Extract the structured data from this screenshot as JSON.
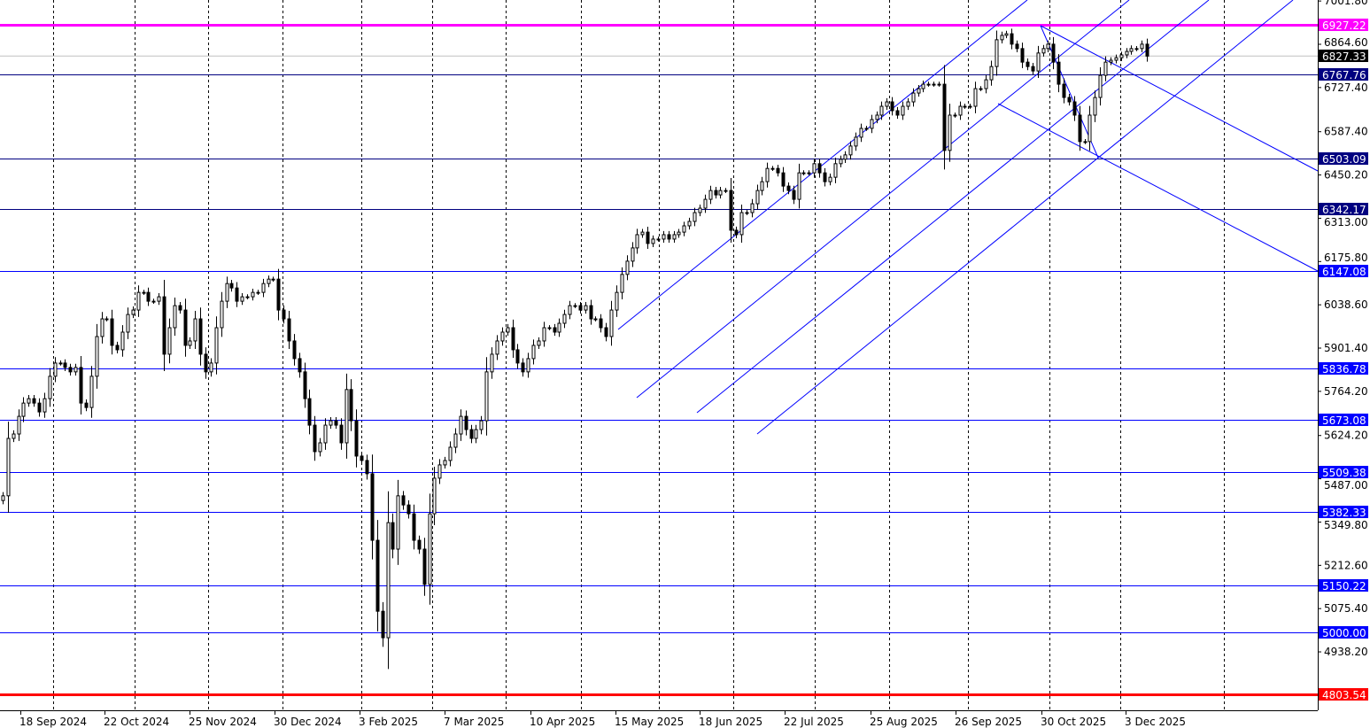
{
  "chart_data": {
    "type": "candlestick",
    "title": "",
    "xlabel": "",
    "ylabel": "",
    "ylim": [
      4780,
      7010
    ],
    "grid": true,
    "x_ticks": [
      "18 Sep 2024",
      "22 Oct 2024",
      "25 Nov 2024",
      "30 Dec 2024",
      "3 Feb 2025",
      "7 Mar 2025",
      "10 Apr 2025",
      "15 May 2025",
      "18 Jun 2025",
      "22 Jul 2025",
      "25 Aug 2025",
      "26 Sep 2025",
      "30 Oct 2025",
      "3 Dec 2025"
    ],
    "y_ticks": [
      "7001.80",
      "6864.60",
      "6727.40",
      "6587.40",
      "6450.20",
      "6313.00",
      "6175.80",
      "6038.60",
      "5901.40",
      "5764.20",
      "5624.20",
      "5487.00",
      "5349.80",
      "5212.60",
      "5075.40",
      "4938.20"
    ],
    "current_price": {
      "value": 6827.33,
      "label": "6827.33",
      "color": "#000000"
    },
    "levels": [
      {
        "value": 6927.22,
        "label": "6927.22",
        "color": "#FF00FF"
      },
      {
        "value": 6767.76,
        "label": "6767.76",
        "color": "#000080"
      },
      {
        "value": 6503.09,
        "label": "6503.09",
        "color": "#000080"
      },
      {
        "value": 6342.17,
        "label": "6342.17",
        "color": "#000080"
      },
      {
        "value": 6147.08,
        "label": "6147.08",
        "color": "#0000FF"
      },
      {
        "value": 5836.78,
        "label": "5836.78",
        "color": "#0000FF"
      },
      {
        "value": 5673.08,
        "label": "5673.08",
        "color": "#0000FF"
      },
      {
        "value": 5509.38,
        "label": "5509.38",
        "color": "#0000FF"
      },
      {
        "value": 5382.33,
        "label": "5382.33",
        "color": "#0000FF"
      },
      {
        "value": 5150.22,
        "label": "5150.22",
        "color": "#0000FF"
      },
      {
        "value": 5000.0,
        "label": "5000.00",
        "color": "#0000FF"
      },
      {
        "value": 4803.54,
        "label": "4803.54",
        "color": "#FF0000"
      }
    ],
    "closes": [
      5433,
      5615,
      5629,
      5685,
      5727,
      5741,
      5727,
      5699,
      5741,
      5812,
      5854,
      5854,
      5840,
      5826,
      5840,
      5727,
      5713,
      5812,
      5938,
      5994,
      5994,
      5910,
      5896,
      5952,
      6008,
      6022,
      6078,
      6078,
      6050,
      6050,
      6064,
      5882,
      5966,
      6036,
      6022,
      5910,
      5924,
      5994,
      5882,
      5826,
      5854,
      5966,
      6050,
      6106,
      6092,
      6050,
      6064,
      6064,
      6078,
      6078,
      6106,
      6120,
      6120,
      6022,
      5994,
      5924,
      5868,
      5826,
      5741,
      5657,
      5573,
      5601,
      5657,
      5671,
      5657,
      5601,
      5770,
      5671,
      5559,
      5545,
      5503,
      5292,
      5067,
      4983,
      5348,
      5264,
      5433,
      5404,
      5376,
      5292,
      5264,
      5152,
      5376,
      5489,
      5531,
      5545,
      5587,
      5629,
      5685,
      5643,
      5615,
      5643,
      5671,
      5826,
      5882,
      5924,
      5952,
      5966,
      5896,
      5854,
      5826,
      5868,
      5910,
      5924,
      5966,
      5966,
      5952,
      5980,
      6008,
      6036,
      6036,
      6022,
      6036,
      5994,
      5994,
      5966,
      5938,
      6022,
      6078,
      6135,
      6177,
      6219,
      6261,
      6269,
      6233,
      6247,
      6247,
      6261,
      6247,
      6261,
      6269,
      6289,
      6303,
      6331,
      6345,
      6373,
      6401,
      6387,
      6401,
      6401,
      6275,
      6261,
      6331,
      6331,
      6359,
      6401,
      6429,
      6471,
      6471,
      6457,
      6415,
      6401,
      6373,
      6457,
      6457,
      6457,
      6486,
      6457,
      6429,
      6443,
      6486,
      6500,
      6514,
      6542,
      6570,
      6598,
      6598,
      6626,
      6640,
      6668,
      6682,
      6654,
      6640,
      6668,
      6682,
      6710,
      6724,
      6738,
      6738,
      6738,
      6738,
      6528,
      6640,
      6640,
      6668,
      6668,
      6668,
      6724,
      6724,
      6752,
      6794,
      6879,
      6893,
      6898,
      6865,
      6851,
      6808,
      6794,
      6780,
      6837,
      6851,
      6865,
      6808,
      6738,
      6696,
      6682,
      6640,
      6556,
      6556,
      6640,
      6696,
      6766,
      6808,
      6814,
      6822,
      6831,
      6842,
      6851,
      6851,
      6865,
      6827
    ]
  }
}
